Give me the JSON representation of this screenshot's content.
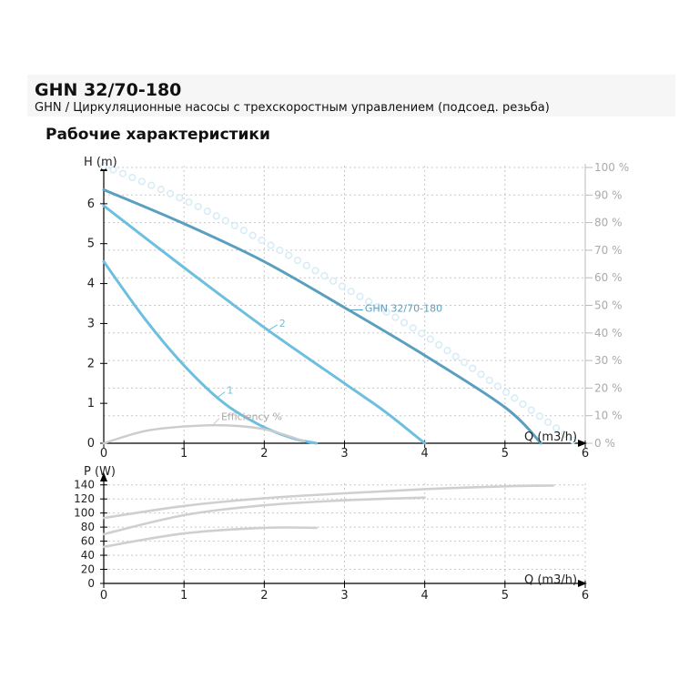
{
  "header": {
    "title": "GHN 32/70-180",
    "subtitle": "GHN / Циркуляционные насосы с трехскоростным управлением (подсоед. резьба)"
  },
  "section_title": "Рабочие характеристики",
  "colors": {
    "curve_main": "#5a9fbf",
    "curve_speed": "#6cbfe0",
    "efficiency": "#cccccc",
    "power": "#cfcfcf",
    "efficiency_dots": "#d8ecf6",
    "grid": "#c8c8c8",
    "axis": "#000000"
  },
  "chart_data": [
    {
      "type": "line",
      "title": "",
      "xlabel": "Q (m3/h)",
      "ylabel": "H (m)",
      "xlim": [
        0,
        6
      ],
      "ylim": [
        0,
        7
      ],
      "x_ticks": [
        "0",
        "1",
        "2",
        "3",
        "4",
        "5",
        "6"
      ],
      "y_ticks": [
        "0",
        "1",
        "2",
        "3",
        "4",
        "5",
        "6"
      ],
      "grid": true,
      "secondary_axis": {
        "ticks": [
          "0 %",
          "10 %",
          "20 %",
          "30 %",
          "40 %",
          "50 %",
          "60 %",
          "70 %",
          "80 %",
          "90 %",
          "100 %"
        ],
        "range": [
          0,
          100
        ]
      },
      "series": [
        {
          "name": "GHN 32/70-180",
          "color": "#5a9fbf",
          "x": [
            0,
            1,
            2,
            3,
            4,
            5,
            5.45
          ],
          "y": [
            6.35,
            5.5,
            4.55,
            3.4,
            2.2,
            0.9,
            0.0
          ]
        },
        {
          "name": "2",
          "color": "#6cbfe0",
          "x": [
            0,
            1,
            2,
            3,
            3.5,
            4.0
          ],
          "y": [
            5.95,
            4.4,
            2.9,
            1.5,
            0.8,
            0.0
          ]
        },
        {
          "name": "1",
          "color": "#6cbfe0",
          "x": [
            0,
            0.5,
            1.0,
            1.5,
            2.0,
            2.4,
            2.65
          ],
          "y": [
            4.55,
            3.15,
            1.95,
            1.0,
            0.4,
            0.1,
            0.0
          ]
        },
        {
          "name": "Efficiency %",
          "color": "#cccccc",
          "x": [
            0,
            0.5,
            1.0,
            1.5,
            2.0,
            2.5
          ],
          "y": [
            0.0,
            0.3,
            0.42,
            0.45,
            0.35,
            0.05
          ]
        },
        {
          "name": "",
          "color": "#d8ecf6",
          "style": "dots",
          "x": [
            0,
            1,
            2,
            3,
            4,
            5,
            5.9
          ],
          "y": [
            6.95,
            6.1,
            5.05,
            3.9,
            2.7,
            1.3,
            0.0
          ]
        }
      ]
    },
    {
      "type": "line",
      "title": "",
      "xlabel": "Q (m3/h)",
      "ylabel": "P (W)",
      "xlim": [
        0,
        6
      ],
      "ylim": [
        0,
        150
      ],
      "x_ticks": [
        "0",
        "1",
        "2",
        "3",
        "4",
        "5",
        "6"
      ],
      "y_ticks": [
        "0",
        "20",
        "40",
        "60",
        "80",
        "100",
        "120",
        "140"
      ],
      "grid": true,
      "series": [
        {
          "name": "",
          "color": "#cfcfcf",
          "x": [
            0,
            1,
            2,
            3,
            4,
            5,
            5.6
          ],
          "y": [
            93,
            110,
            121,
            128,
            134,
            138,
            139
          ]
        },
        {
          "name": "",
          "color": "#cfcfcf",
          "x": [
            0,
            1,
            2,
            3,
            4.0
          ],
          "y": [
            70,
            97,
            111,
            118,
            122
          ]
        },
        {
          "name": "",
          "color": "#cfcfcf",
          "x": [
            0,
            1,
            2,
            2.65
          ],
          "y": [
            52,
            71,
            79,
            79
          ]
        }
      ]
    }
  ]
}
